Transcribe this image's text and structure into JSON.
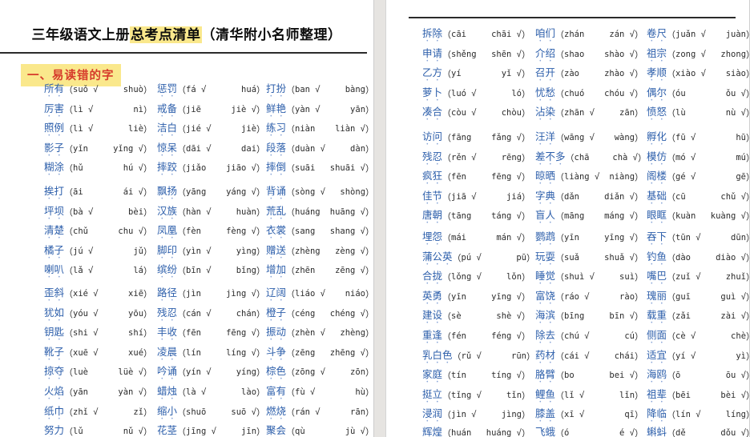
{
  "meta": {
    "title_prefix": "三年级语文上册",
    "title_highlight": "总考点清单",
    "title_suffix": "（清华附小名师整理）",
    "section_heading": "一、易读错的字",
    "paren_open": "（",
    "paren_close": "）",
    "check": "√"
  },
  "colors": {
    "word_blue": "#2d5fab",
    "highlight_yellow": "#fae88c",
    "heading_red": "#d63a2b",
    "pinyin_dark": "#2b2b2b",
    "page_white": "#ffffff",
    "gutter_gray": "#e6e4e1"
  },
  "left_page": {
    "groups": [
      [
        [
          {
            "w": "所有",
            "a": "suǒ",
            "b": "shuò",
            "ok": 1
          },
          {
            "w": "惩罚",
            "a": "fá",
            "b": "huá",
            "ok": 1
          },
          {
            "w": "打扮",
            "a": "ban",
            "b": "bàng",
            "ok": 1
          }
        ],
        [
          {
            "w": "厉害",
            "a": "lì",
            "b": "nì",
            "ok": 1
          },
          {
            "w": "戒备",
            "a": "jiē",
            "b": "jiè",
            "ok": 2
          },
          {
            "w": "鲜艳",
            "a": "yàn",
            "b": "yān",
            "ok": 1
          }
        ],
        [
          {
            "w": "照例",
            "a": "lì",
            "b": "liè",
            "ok": 1
          },
          {
            "w": "洁白",
            "a": "jié",
            "b": "jiè",
            "ok": 1
          },
          {
            "w": "练习",
            "a": "niàn",
            "b": "liàn",
            "ok": 2
          }
        ],
        [
          {
            "w": "影子",
            "a": "yǐn",
            "b": "yǐng",
            "ok": 2
          },
          {
            "w": "惊呆",
            "a": "dāi",
            "b": "dai",
            "ok": 1
          },
          {
            "w": "段落",
            "a": "duàn",
            "b": "dàn",
            "ok": 1
          }
        ],
        [
          {
            "w": "糊涂",
            "a": "hǔ",
            "b": "hú",
            "ok": 2
          },
          {
            "w": "摔跤",
            "a": "jiǎo",
            "b": "jiāo",
            "ok": 2
          },
          {
            "w": "摔倒",
            "a": "suāi",
            "b": "shuāi",
            "ok": 2
          }
        ]
      ],
      [
        [
          {
            "w": "挨打",
            "a": "āi",
            "b": "ái",
            "ok": 2
          },
          {
            "w": "飘扬",
            "a": "yāng",
            "b": "yáng",
            "ok": 2
          },
          {
            "w": "背诵",
            "a": "sòng",
            "b": "shòng",
            "ok": 1
          }
        ],
        [
          {
            "w": "坪坝",
            "a": "bà",
            "b": "bèi",
            "ok": 1
          },
          {
            "w": "汉族",
            "a": "hàn",
            "b": "huàn",
            "ok": 1
          },
          {
            "w": "荒乱",
            "a": "huáng",
            "b": "huāng",
            "ok": 2
          }
        ],
        [
          {
            "w": "清楚",
            "a": "chǔ",
            "b": "chu",
            "ok": 2
          },
          {
            "w": "凤凰",
            "a": "fèn",
            "b": "fèng",
            "ok": 2
          },
          {
            "w": "衣裳",
            "a": "sang",
            "b": "shang",
            "ok": 2
          }
        ],
        [
          {
            "w": "橘子",
            "a": "jú",
            "b": "jǔ",
            "ok": 1
          },
          {
            "w": "脚印",
            "a": "yìn",
            "b": "yìng",
            "ok": 1
          },
          {
            "w": "赠送",
            "a": "zhèng",
            "b": "zèng",
            "ok": 2
          }
        ],
        [
          {
            "w": "喇叭",
            "a": "lǎ",
            "b": "lá",
            "ok": 1
          },
          {
            "w": "缤纷",
            "a": "bīn",
            "b": "bǐng",
            "ok": 1
          },
          {
            "w": "增加",
            "a": "zhēn",
            "b": "zēng",
            "ok": 2
          }
        ]
      ],
      [
        [
          {
            "w": "歪斜",
            "a": "xié",
            "b": "xiē",
            "ok": 1
          },
          {
            "w": "路径",
            "a": "jìn",
            "b": "jìng",
            "ok": 2
          },
          {
            "w": "辽阔",
            "a": "liáo",
            "b": "niáo",
            "ok": 1
          }
        ],
        [
          {
            "w": "犹如",
            "a": "yóu",
            "b": "yōu",
            "ok": 1
          },
          {
            "w": "残忍",
            "a": "cán",
            "b": "chán",
            "ok": 1
          },
          {
            "w": "橙子",
            "a": "céng",
            "b": "chéng",
            "ok": 2
          }
        ],
        [
          {
            "w": "钥匙",
            "a": "shi",
            "b": "shí",
            "ok": 1
          },
          {
            "w": "丰收",
            "a": "fēn",
            "b": "fēng",
            "ok": 2
          },
          {
            "w": "振动",
            "a": "zhèn",
            "b": "zhèng",
            "ok": 1
          }
        ],
        [
          {
            "w": "靴子",
            "a": "xuē",
            "b": "xué",
            "ok": 1
          },
          {
            "w": "凌晨",
            "a": "lín",
            "b": "líng",
            "ok": 2
          },
          {
            "w": "斗争",
            "a": "zēng",
            "b": "zhēng",
            "ok": 2
          }
        ],
        [
          {
            "w": "掠夺",
            "a": "luè",
            "b": "lüè",
            "ok": 2
          },
          {
            "w": "吟诵",
            "a": "yín",
            "b": "yíng",
            "ok": 1
          },
          {
            "w": "棕色",
            "a": "zōng",
            "b": "zōn",
            "ok": 1
          }
        ]
      ],
      [
        [
          {
            "w": "火焰",
            "a": "yān",
            "b": "yàn",
            "ok": 2
          },
          {
            "w": "蜡烛",
            "a": "là",
            "b": "lào",
            "ok": 1
          },
          {
            "w": "富有",
            "a": "fù",
            "b": "hù",
            "ok": 1
          }
        ],
        [
          {
            "w": "纸巾",
            "a": "zhǐ",
            "b": "zǐ",
            "ok": 1
          },
          {
            "w": "缩小",
            "a": "shuō",
            "b": "suō",
            "ok": 2
          },
          {
            "w": "燃烧",
            "a": "rán",
            "b": "rān",
            "ok": 1
          }
        ],
        [
          {
            "w": "努力",
            "a": "lǔ",
            "b": "nǔ",
            "ok": 2
          },
          {
            "w": "花茎",
            "a": "jīng",
            "b": "jīn",
            "ok": 1
          },
          {
            "w": "聚会",
            "a": "qù",
            "b": "jù",
            "ok": 2
          }
        ]
      ]
    ]
  },
  "right_page": {
    "groups": [
      [
        [
          {
            "w": "拆除",
            "a": "cāi",
            "b": "chāi",
            "ok": 2
          },
          {
            "w": "咱们",
            "a": "zhán",
            "b": "zán",
            "ok": 2
          },
          {
            "w": "卷尺",
            "a": "juǎn",
            "b": "juàn",
            "ok": 1
          }
        ],
        [
          {
            "w": "申请",
            "a": "shěng",
            "b": "shēn",
            "ok": 2
          },
          {
            "w": "介绍",
            "a": "shao",
            "b": "shào",
            "ok": 2
          },
          {
            "w": "祖宗",
            "a": "zong",
            "b": "zhong",
            "ok": 1
          }
        ],
        [
          {
            "w": "乙方",
            "a": "yí",
            "b": "yǐ",
            "ok": 2
          },
          {
            "w": "召开",
            "a": "zào",
            "b": "zhào",
            "ok": 2
          },
          {
            "w": "孝顺",
            "a": "xiào",
            "b": "siào",
            "ok": 1
          }
        ],
        [
          {
            "w": "萝卜",
            "a": "luó",
            "b": "ló",
            "ok": 1
          },
          {
            "w": "忧愁",
            "a": "chuó",
            "b": "chóu",
            "ok": 2
          },
          {
            "w": "偶尔",
            "a": "óu",
            "b": "ǒu",
            "ok": 2
          }
        ],
        [
          {
            "w": "凑合",
            "a": "còu",
            "b": "chòu",
            "ok": 1
          },
          {
            "w": "沾染",
            "a": "zhān",
            "b": "zān",
            "ok": 1
          },
          {
            "w": "愤怒",
            "a": "lù",
            "b": "nù",
            "ok": 2
          }
        ]
      ],
      [
        [
          {
            "w": "访问",
            "a": "fāng",
            "b": "fǎng",
            "ok": 2
          },
          {
            "w": "汪洋",
            "a": "wāng",
            "b": "wàng",
            "ok": 1
          },
          {
            "w": "孵化",
            "a": "fū",
            "b": "hū",
            "ok": 1
          }
        ],
        [
          {
            "w": "残忍",
            "a": "rěn",
            "b": "rēng",
            "ok": 1
          },
          {
            "w": "差不多",
            "a": "chā",
            "b": "chà",
            "ok": 2
          },
          {
            "w": "模仿",
            "a": "mó",
            "b": "mú",
            "ok": 1
          }
        ],
        [
          {
            "w": "疯狂",
            "a": "fēn",
            "b": "fēng",
            "ok": 2
          },
          {
            "w": "晾晒",
            "a": "liàng",
            "b": "niàng",
            "ok": 1
          },
          {
            "w": "阁楼",
            "a": "gé",
            "b": "gē",
            "ok": 1
          }
        ],
        [
          {
            "w": "佳节",
            "a": "jiā",
            "b": "jiá",
            "ok": 1
          },
          {
            "w": "字典",
            "a": "dǎn",
            "b": "diǎn",
            "ok": 2
          },
          {
            "w": "基础",
            "a": "cū",
            "b": "chǔ",
            "ok": 2
          }
        ],
        [
          {
            "w": "唐朝",
            "a": "tāng",
            "b": "táng",
            "ok": 2
          },
          {
            "w": "盲人",
            "a": "māng",
            "b": "máng",
            "ok": 2
          },
          {
            "w": "眼眶",
            "a": "kuàn",
            "b": "kuàng",
            "ok": 2
          }
        ]
      ],
      [
        [
          {
            "w": "埋怨",
            "a": "mái",
            "b": "mán",
            "ok": 2
          },
          {
            "w": "鹦鹉",
            "a": "yīn",
            "b": "yīng",
            "ok": 2
          },
          {
            "w": "吞下",
            "a": "tūn",
            "b": "dūn",
            "ok": 1
          }
        ],
        [
          {
            "w": "蒲公英",
            "a": "pú",
            "b": "pū",
            "ok": 1
          },
          {
            "w": "玩耍",
            "a": "suǎ",
            "b": "shuǎ",
            "ok": 2
          },
          {
            "w": "钓鱼",
            "a": "dào",
            "b": "diào",
            "ok": 2
          }
        ],
        [
          {
            "w": "合拢",
            "a": "lǒng",
            "b": "lǒn",
            "ok": 1
          },
          {
            "w": "睡觉",
            "a": "shuì",
            "b": "suì",
            "ok": 1
          },
          {
            "w": "嘴巴",
            "a": "zuǐ",
            "b": "zhuǐ",
            "ok": 1
          }
        ],
        [
          {
            "w": "英勇",
            "a": "yīn",
            "b": "yīng",
            "ok": 2
          },
          {
            "w": "富饶",
            "a": "ráo",
            "b": "rào",
            "ok": 1
          },
          {
            "w": "瑰丽",
            "a": "guī",
            "b": "guì",
            "ok": 2
          }
        ],
        [
          {
            "w": "建设",
            "a": "sè",
            "b": "shè",
            "ok": 2
          },
          {
            "w": "海滨",
            "a": "bīng",
            "b": "bīn",
            "ok": 2
          },
          {
            "w": "载重",
            "a": "zǎi",
            "b": "zài",
            "ok": 2
          }
        ]
      ],
      [
        [
          {
            "w": "重逢",
            "a": "fén",
            "b": "féng",
            "ok": 2
          },
          {
            "w": "除去",
            "a": "chú",
            "b": "cú",
            "ok": 1
          },
          {
            "w": "侧面",
            "a": "cè",
            "b": "chè",
            "ok": 1
          }
        ],
        [
          {
            "w": "乳白色",
            "a": "rǔ",
            "b": "rūn",
            "ok": 1
          },
          {
            "w": "药材",
            "a": "cái",
            "b": "chái",
            "ok": 1
          },
          {
            "w": "适宜",
            "a": "yí",
            "b": "yì",
            "ok": 1
          }
        ],
        [
          {
            "w": "家庭",
            "a": "tín",
            "b": "tíng",
            "ok": 2
          },
          {
            "w": "胳臂",
            "a": "bo",
            "b": "bei",
            "ok": 2
          },
          {
            "w": "海鸥",
            "a": "ō",
            "b": "ōu",
            "ok": 2
          }
        ],
        [
          {
            "w": "挺立",
            "a": "tǐng",
            "b": "tǐn",
            "ok": 1
          },
          {
            "w": "鲤鱼",
            "a": "lǐ",
            "b": "lǐn",
            "ok": 1
          },
          {
            "w": "祖辈",
            "a": "bēi",
            "b": "bèi",
            "ok": 2
          }
        ],
        [
          {
            "w": "浸润",
            "a": "jìn",
            "b": "jìng",
            "ok": 1
          },
          {
            "w": "膝盖",
            "a": "xī",
            "b": "qī",
            "ok": 1
          },
          {
            "w": "降临",
            "a": "lín",
            "b": "líng",
            "ok": 1
          }
        ]
      ],
      [
        [
          {
            "w": "辉煌",
            "a": "huán",
            "b": "huáng",
            "ok": 2
          },
          {
            "w": "飞蛾",
            "a": "ó",
            "b": "é",
            "ok": 2
          },
          {
            "w": "蝌蚪",
            "a": "dě",
            "b": "dǒu",
            "ok": 2
          }
        ]
      ]
    ]
  }
}
